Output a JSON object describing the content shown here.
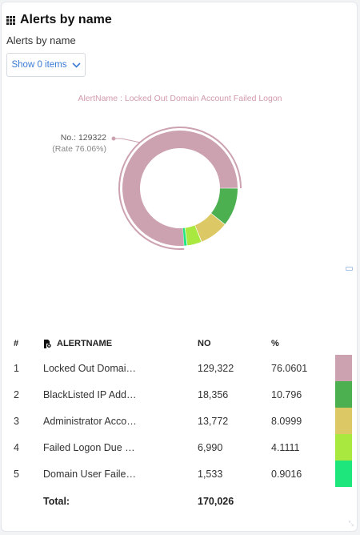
{
  "widget": {
    "title": "Alerts by name",
    "subtitle": "Alerts by name",
    "show_items_label": "Show 0 items"
  },
  "chart_data": {
    "type": "pie",
    "title": "AlertName : Locked Out Domain Account Failed Logon",
    "highlight": {
      "label": "No.: 129322",
      "rate": "(Rate 76.06%)"
    },
    "slices": [
      {
        "label": "Locked Out Domain Account Failed Logon",
        "value": 129322,
        "color": "#cca1b0"
      },
      {
        "label": "BlackListed IP Address",
        "value": 18356,
        "color": "#4caf50"
      },
      {
        "label": "Administrator Account",
        "value": 13772,
        "color": "#dcc864"
      },
      {
        "label": "Failed Logon Due",
        "value": 6990,
        "color": "#a9e83e"
      },
      {
        "label": "Domain User Failed",
        "value": 1533,
        "color": "#1ee67c"
      }
    ]
  },
  "table": {
    "headers": {
      "index": "#",
      "name": "ALERTNAME",
      "no": "NO",
      "pct": "%"
    },
    "rows": [
      {
        "index": "1",
        "name": "Locked Out Domai…",
        "no": "129,322",
        "pct": "76.0601",
        "color": "#cca1b0"
      },
      {
        "index": "2",
        "name": "BlackListed IP Add…",
        "no": "18,356",
        "pct": "10.796",
        "color": "#4caf50"
      },
      {
        "index": "3",
        "name": "Administrator Acco…",
        "no": "13,772",
        "pct": "8.0999",
        "color": "#dcc864"
      },
      {
        "index": "4",
        "name": "Failed Logon Due …",
        "no": "6,990",
        "pct": "4.1111",
        "color": "#a9e83e"
      },
      {
        "index": "5",
        "name": "Domain User Faile…",
        "no": "1,533",
        "pct": "0.9016",
        "color": "#1ee67c"
      }
    ],
    "total_label": "Total:",
    "total_value": "170,026"
  }
}
